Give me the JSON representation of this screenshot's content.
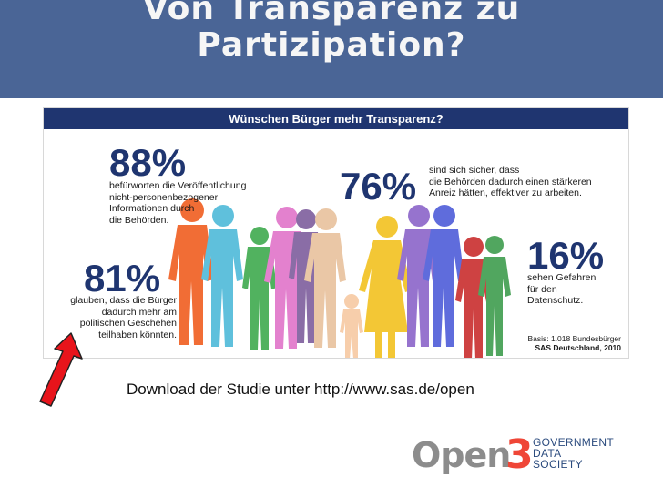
{
  "slide": {
    "title_line1": "Von Transparenz zu",
    "title_line2": "Partizipation?",
    "download_text": "Download der Studie unter http://www.sas.de/open"
  },
  "infographic": {
    "header": "Wünschen Bürger mehr Transparenz?",
    "stats": [
      {
        "value": "88%",
        "lines": [
          "befürworten die Veröffentlichung",
          "nicht-personenbezogener",
          "Informationen durch",
          "die Behörden."
        ]
      },
      {
        "value": "76%",
        "lines": [
          "sind sich sicher, dass",
          "die Behörden dadurch einen stärkeren",
          "Anreiz hätten, effektiver zu arbeiten."
        ]
      },
      {
        "value": "81%",
        "lines": [
          "glauben, dass die Bürger",
          "dadurch mehr am",
          "politischen Geschehen",
          "teilhaben könnten."
        ]
      },
      {
        "value": "16%",
        "lines": [
          "sehen Gefahren",
          "für den",
          "Datenschutz."
        ]
      }
    ],
    "basis_line1": "Basis: 1.018 Bundesbürger",
    "basis_line2": "SAS Deutschland, 2010",
    "figure_colors": [
      "#f05a1a",
      "#4ab8d8",
      "#3aa84a",
      "#e070c8",
      "#7a5a9a",
      "#e8c09a",
      "#f6c8a0",
      "#f2c01a",
      "#8860c8",
      "#4aa8d8",
      "#c82828",
      "#3a9a4a"
    ]
  },
  "logo": {
    "open": "Open",
    "three": "3",
    "word1": "GOVERNMENT",
    "word2": "DATA",
    "word3": "SOCIETY"
  },
  "colors": {
    "title_bg": "#4a6596",
    "header_bg": "#1f3570",
    "arrow": "#e8141b"
  }
}
